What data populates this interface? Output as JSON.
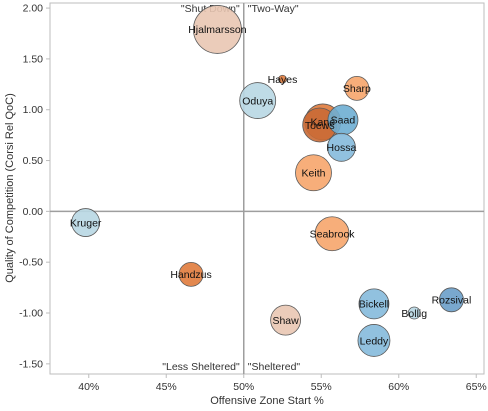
{
  "chart_data": {
    "type": "scatter",
    "title": "",
    "xlabel": "Offensive Zone Start %",
    "ylabel": "Quality of Competition (Corsi Rel QoC)",
    "xlim": [
      0.375,
      0.655
    ],
    "ylim": [
      -1.6,
      2.05
    ],
    "x_ticks": [
      {
        "value": 0.4,
        "label": "40%"
      },
      {
        "value": 0.45,
        "label": "45%"
      },
      {
        "value": 0.5,
        "label": "50%"
      },
      {
        "value": 0.55,
        "label": "55%"
      },
      {
        "value": 0.6,
        "label": "60%"
      },
      {
        "value": 0.65,
        "label": "65%"
      }
    ],
    "y_ticks": [
      {
        "value": 2.0,
        "label": "2.00"
      },
      {
        "value": 1.5,
        "label": "1.50"
      },
      {
        "value": 1.0,
        "label": "1.00"
      },
      {
        "value": 0.5,
        "label": "0.50"
      },
      {
        "value": 0.0,
        "label": "0.00"
      },
      {
        "value": -0.5,
        "label": "-0.50"
      },
      {
        "value": -1.0,
        "label": "-1.00"
      },
      {
        "value": -1.5,
        "label": "-1.50"
      }
    ],
    "reference_lines": {
      "x": 0.5,
      "y": 0.0
    },
    "quadrant_labels": [
      {
        "text": "\"Shut Down\"",
        "corner": "top-left"
      },
      {
        "text": "\"Two-Way\"",
        "corner": "top-right"
      },
      {
        "text": "\"Less Sheltered\"",
        "corner": "bottom-left"
      },
      {
        "text": "\"Sheltered\"",
        "corner": "bottom-right"
      }
    ],
    "grid": false,
    "points": [
      {
        "name": "Hjalmarsson",
        "x": 0.483,
        "y": 1.79,
        "size": 24,
        "color": "#e9c6b3"
      },
      {
        "name": "Hayes",
        "x": 0.525,
        "y": 1.3,
        "size": 4,
        "color": "#e07b3c"
      },
      {
        "name": "Sharp",
        "x": 0.573,
        "y": 1.21,
        "size": 12,
        "color": "#f6a56b"
      },
      {
        "name": "Oduya",
        "x": 0.509,
        "y": 1.09,
        "size": 18,
        "color": "#b8d7e3"
      },
      {
        "name": "Saad",
        "x": 0.564,
        "y": 0.9,
        "size": 15,
        "color": "#6eaed3"
      },
      {
        "name": "Toews",
        "x": 0.549,
        "y": 0.85,
        "size": 17,
        "color": "#c96a35"
      },
      {
        "name": "Kane",
        "x": 0.551,
        "y": 0.88,
        "size": 18,
        "color": "#e07b3c"
      },
      {
        "name": "Hossa",
        "x": 0.563,
        "y": 0.63,
        "size": 14,
        "color": "#85badb"
      },
      {
        "name": "Keith",
        "x": 0.545,
        "y": 0.38,
        "size": 18,
        "color": "#f6a56b"
      },
      {
        "name": "Kruger",
        "x": 0.398,
        "y": -0.11,
        "size": 14,
        "color": "#b8d7e3"
      },
      {
        "name": "Seabrook",
        "x": 0.557,
        "y": -0.22,
        "size": 17,
        "color": "#f6a56b"
      },
      {
        "name": "Handzus",
        "x": 0.466,
        "y": -0.62,
        "size": 12,
        "color": "#e07b3c"
      },
      {
        "name": "Rozsival",
        "x": 0.634,
        "y": -0.87,
        "size": 12,
        "color": "#6a9fc9"
      },
      {
        "name": "Bickell",
        "x": 0.584,
        "y": -0.91,
        "size": 15,
        "color": "#85badb"
      },
      {
        "name": "Bollig",
        "x": 0.61,
        "y": -1.0,
        "size": 6,
        "color": "#b8d7e3"
      },
      {
        "name": "Shaw",
        "x": 0.527,
        "y": -1.07,
        "size": 15,
        "color": "#e9c6b3"
      },
      {
        "name": "Leddy",
        "x": 0.584,
        "y": -1.27,
        "size": 16,
        "color": "#85badb"
      }
    ]
  }
}
